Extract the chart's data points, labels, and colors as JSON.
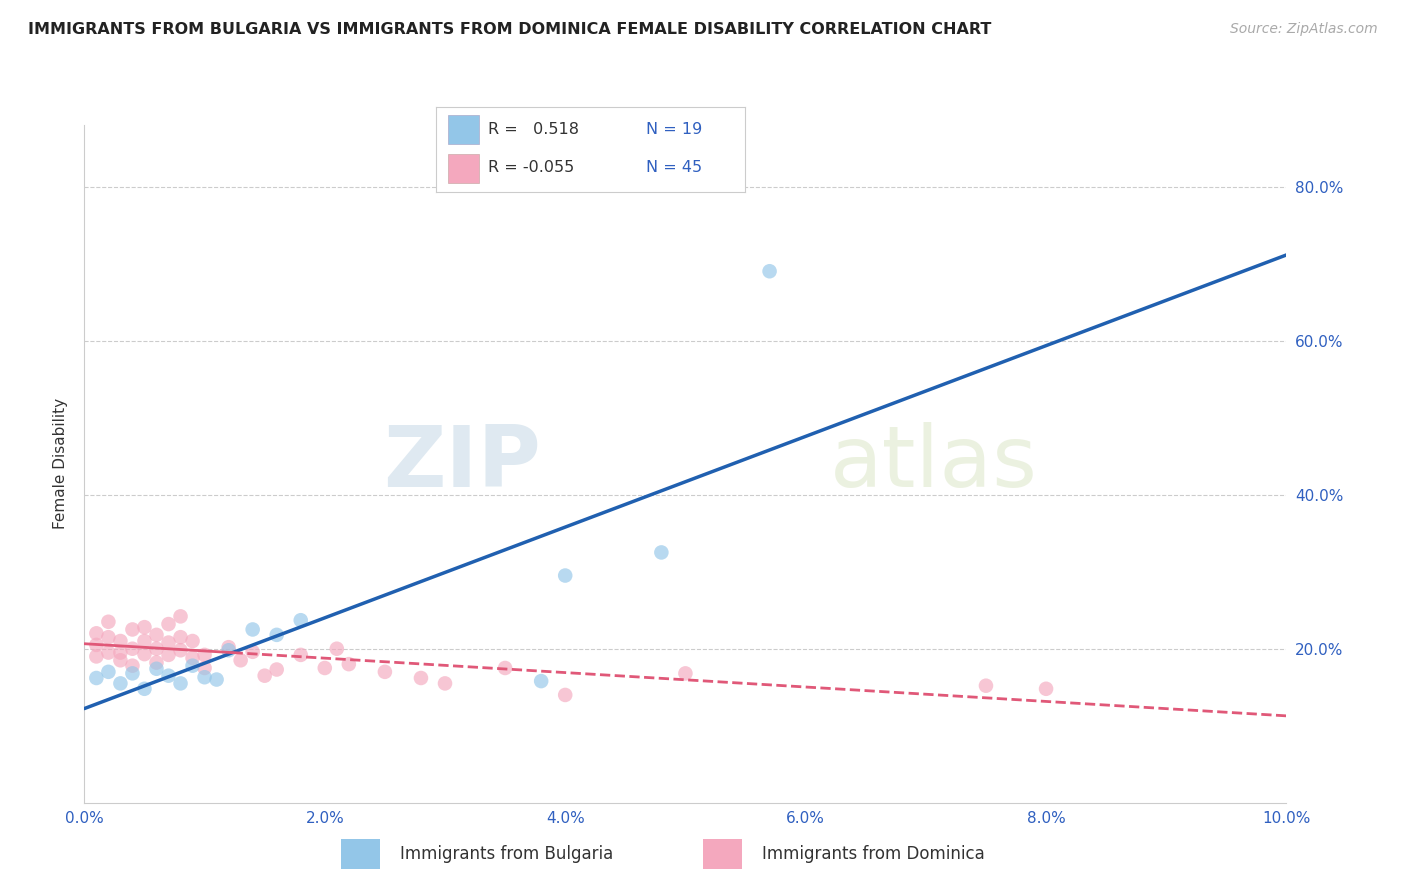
{
  "title": "IMMIGRANTS FROM BULGARIA VS IMMIGRANTS FROM DOMINICA FEMALE DISABILITY CORRELATION CHART",
  "source": "Source: ZipAtlas.com",
  "ylabel": "Female Disability",
  "xlim": [
    0.0,
    0.1
  ],
  "ylim": [
    0.0,
    0.88
  ],
  "xtick_labels": [
    "0.0%",
    "2.0%",
    "4.0%",
    "6.0%",
    "8.0%",
    "10.0%"
  ],
  "xtick_values": [
    0.0,
    0.02,
    0.04,
    0.06,
    0.08,
    0.1
  ],
  "ytick_labels": [
    "20.0%",
    "40.0%",
    "60.0%",
    "80.0%"
  ],
  "ytick_values": [
    0.2,
    0.4,
    0.6,
    0.8
  ],
  "grid_color": "#cccccc",
  "watermark_zip": "ZIP",
  "watermark_atlas": "atlas",
  "legend_R_bulgaria": " 0.518",
  "legend_N_bulgaria": "19",
  "legend_R_dominica": "-0.055",
  "legend_N_dominica": "45",
  "bulgaria_color": "#93c6e8",
  "dominica_color": "#f4a8be",
  "bulgaria_line_color": "#2060b0",
  "dominica_line_color": "#e05878",
  "text_blue": "#3060c0",
  "text_dark": "#333333",
  "text_gray": "#aaaaaa",
  "scatter_alpha": 0.65,
  "scatter_size": 110,
  "bulgaria_points_x": [
    0.001,
    0.002,
    0.003,
    0.004,
    0.005,
    0.006,
    0.007,
    0.008,
    0.009,
    0.01,
    0.011,
    0.012,
    0.014,
    0.016,
    0.018,
    0.038,
    0.04,
    0.048,
    0.057
  ],
  "bulgaria_points_y": [
    0.162,
    0.17,
    0.155,
    0.168,
    0.148,
    0.174,
    0.165,
    0.155,
    0.178,
    0.163,
    0.16,
    0.198,
    0.225,
    0.218,
    0.237,
    0.158,
    0.295,
    0.325,
    0.69
  ],
  "dominica_points_x": [
    0.001,
    0.001,
    0.001,
    0.002,
    0.002,
    0.002,
    0.003,
    0.003,
    0.003,
    0.004,
    0.004,
    0.004,
    0.005,
    0.005,
    0.005,
    0.006,
    0.006,
    0.006,
    0.007,
    0.007,
    0.007,
    0.008,
    0.008,
    0.008,
    0.009,
    0.009,
    0.01,
    0.01,
    0.012,
    0.013,
    0.014,
    0.015,
    0.016,
    0.018,
    0.02,
    0.021,
    0.022,
    0.025,
    0.028,
    0.03,
    0.035,
    0.04,
    0.05,
    0.075,
    0.08
  ],
  "dominica_points_y": [
    0.19,
    0.205,
    0.22,
    0.195,
    0.215,
    0.235,
    0.185,
    0.21,
    0.195,
    0.178,
    0.2,
    0.225,
    0.193,
    0.21,
    0.228,
    0.182,
    0.2,
    0.218,
    0.192,
    0.208,
    0.232,
    0.198,
    0.215,
    0.242,
    0.188,
    0.21,
    0.175,
    0.192,
    0.202,
    0.185,
    0.196,
    0.165,
    0.173,
    0.192,
    0.175,
    0.2,
    0.18,
    0.17,
    0.162,
    0.155,
    0.175,
    0.14,
    0.168,
    0.152,
    0.148
  ]
}
